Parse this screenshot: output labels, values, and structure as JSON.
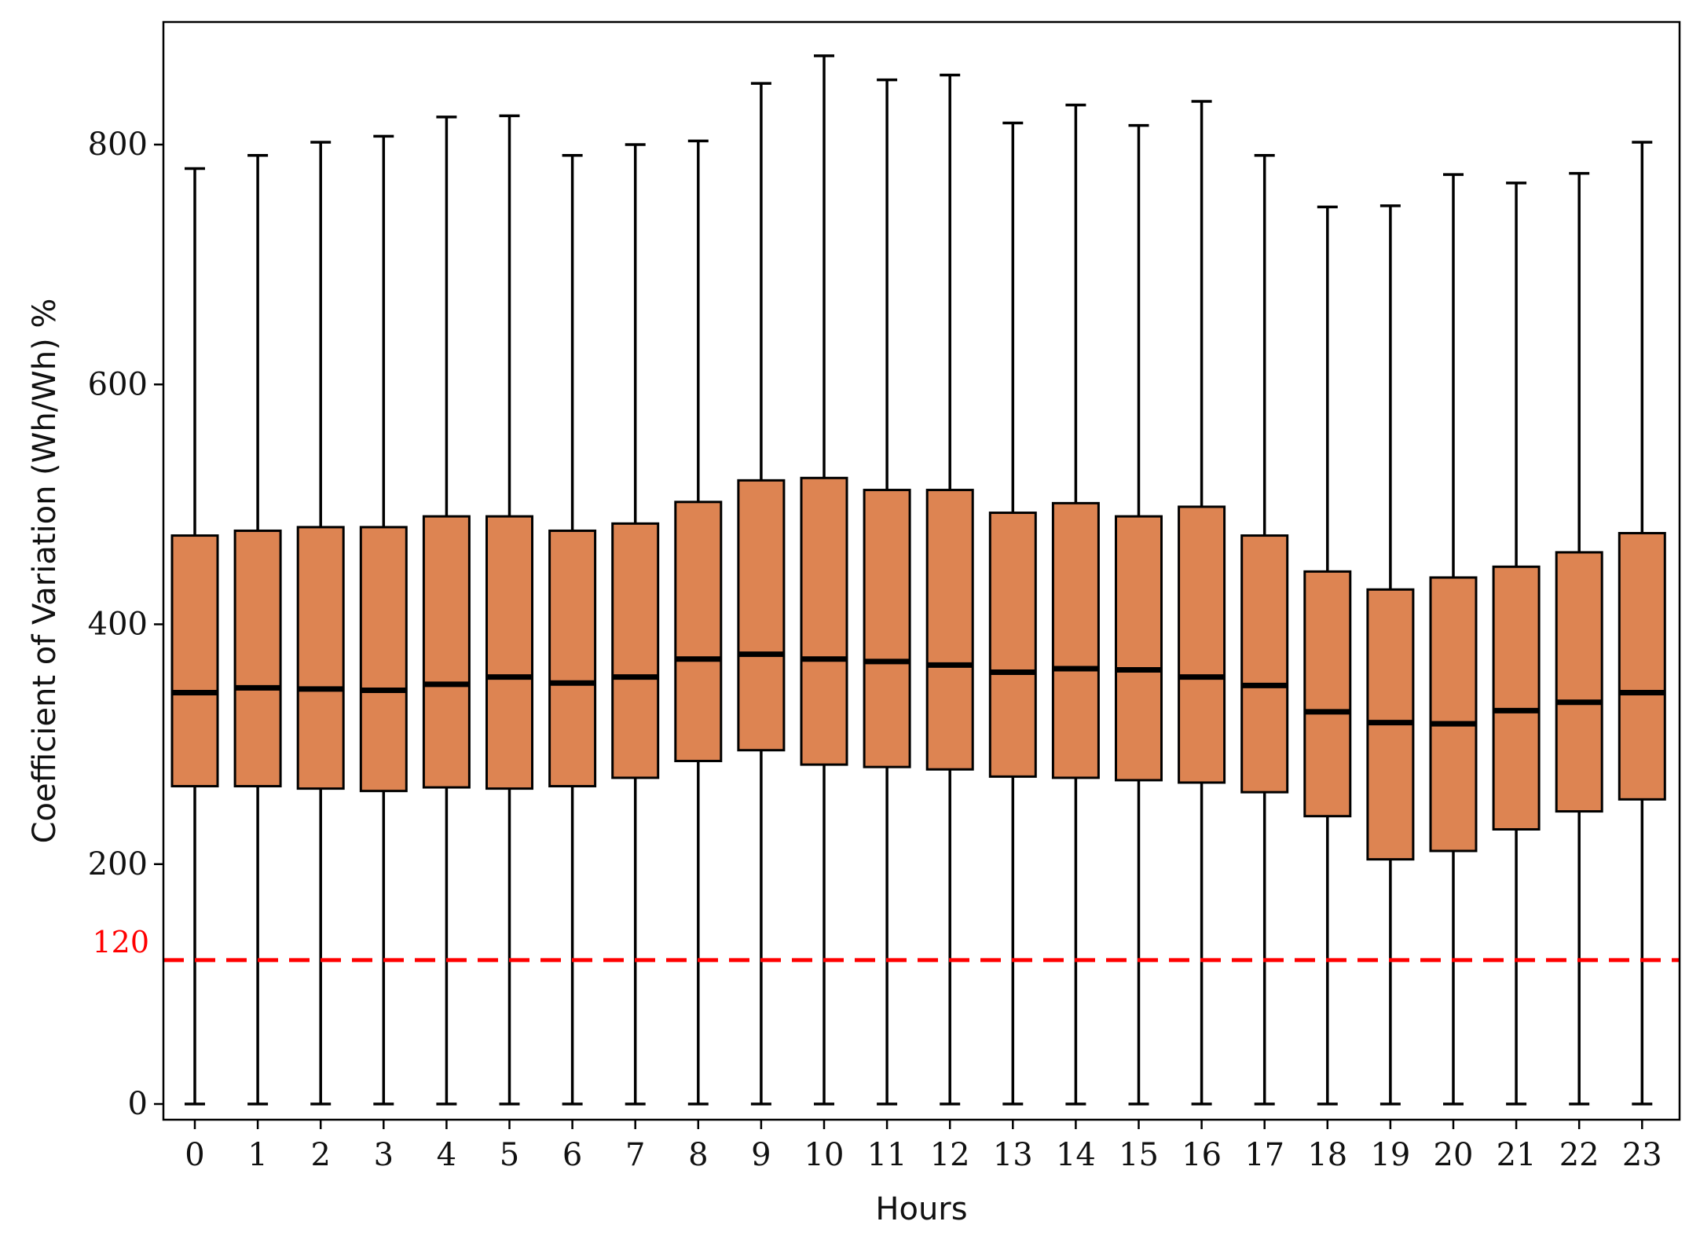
{
  "chart_data": {
    "type": "box",
    "xlabel": "Hours",
    "ylabel": "Coefficient of Variation (Wh/Wh) %",
    "categories": [
      "0",
      "1",
      "2",
      "3",
      "4",
      "5",
      "6",
      "7",
      "8",
      "9",
      "10",
      "11",
      "12",
      "13",
      "14",
      "15",
      "16",
      "17",
      "18",
      "19",
      "20",
      "21",
      "22",
      "23"
    ],
    "boxes": [
      {
        "whisker_low": 0,
        "q1": 265,
        "median": 343,
        "q3": 474,
        "whisker_high": 780
      },
      {
        "whisker_low": 0,
        "q1": 265,
        "median": 347,
        "q3": 478,
        "whisker_high": 791
      },
      {
        "whisker_low": 0,
        "q1": 263,
        "median": 346,
        "q3": 481,
        "whisker_high": 802
      },
      {
        "whisker_low": 0,
        "q1": 261,
        "median": 345,
        "q3": 481,
        "whisker_high": 807
      },
      {
        "whisker_low": 0,
        "q1": 264,
        "median": 350,
        "q3": 490,
        "whisker_high": 823
      },
      {
        "whisker_low": 0,
        "q1": 263,
        "median": 356,
        "q3": 490,
        "whisker_high": 824
      },
      {
        "whisker_low": 0,
        "q1": 265,
        "median": 351,
        "q3": 478,
        "whisker_high": 791
      },
      {
        "whisker_low": 0,
        "q1": 272,
        "median": 356,
        "q3": 484,
        "whisker_high": 800
      },
      {
        "whisker_low": 0,
        "q1": 286,
        "median": 371,
        "q3": 502,
        "whisker_high": 803
      },
      {
        "whisker_low": 0,
        "q1": 295,
        "median": 375,
        "q3": 520,
        "whisker_high": 851
      },
      {
        "whisker_low": 0,
        "q1": 283,
        "median": 371,
        "q3": 522,
        "whisker_high": 874
      },
      {
        "whisker_low": 0,
        "q1": 281,
        "median": 369,
        "q3": 512,
        "whisker_high": 854
      },
      {
        "whisker_low": 0,
        "q1": 279,
        "median": 366,
        "q3": 512,
        "whisker_high": 858
      },
      {
        "whisker_low": 0,
        "q1": 273,
        "median": 360,
        "q3": 493,
        "whisker_high": 818
      },
      {
        "whisker_low": 0,
        "q1": 272,
        "median": 363,
        "q3": 501,
        "whisker_high": 833
      },
      {
        "whisker_low": 0,
        "q1": 270,
        "median": 362,
        "q3": 490,
        "whisker_high": 816
      },
      {
        "whisker_low": 0,
        "q1": 268,
        "median": 356,
        "q3": 498,
        "whisker_high": 836
      },
      {
        "whisker_low": 0,
        "q1": 260,
        "median": 349,
        "q3": 474,
        "whisker_high": 791
      },
      {
        "whisker_low": 0,
        "q1": 240,
        "median": 327,
        "q3": 444,
        "whisker_high": 748
      },
      {
        "whisker_low": 0,
        "q1": 204,
        "median": 318,
        "q3": 429,
        "whisker_high": 749
      },
      {
        "whisker_low": 0,
        "q1": 211,
        "median": 317,
        "q3": 439,
        "whisker_high": 775
      },
      {
        "whisker_low": 0,
        "q1": 229,
        "median": 328,
        "q3": 448,
        "whisker_high": 768
      },
      {
        "whisker_low": 0,
        "q1": 244,
        "median": 335,
        "q3": 460,
        "whisker_high": 776
      },
      {
        "whisker_low": 0,
        "q1": 254,
        "median": 343,
        "q3": 476,
        "whisker_high": 802
      }
    ],
    "ylim": [
      -10,
      895
    ],
    "yticks": [
      0,
      200,
      400,
      600,
      800
    ],
    "ytick_labels": [
      "0",
      "200",
      "400",
      "600",
      "800"
    ],
    "reference_line": {
      "value": 120,
      "label": "120",
      "color": "#ff0000",
      "style": "dashed"
    },
    "box_color": "#dd8452",
    "edge_color": "#000000",
    "grid": false
  }
}
